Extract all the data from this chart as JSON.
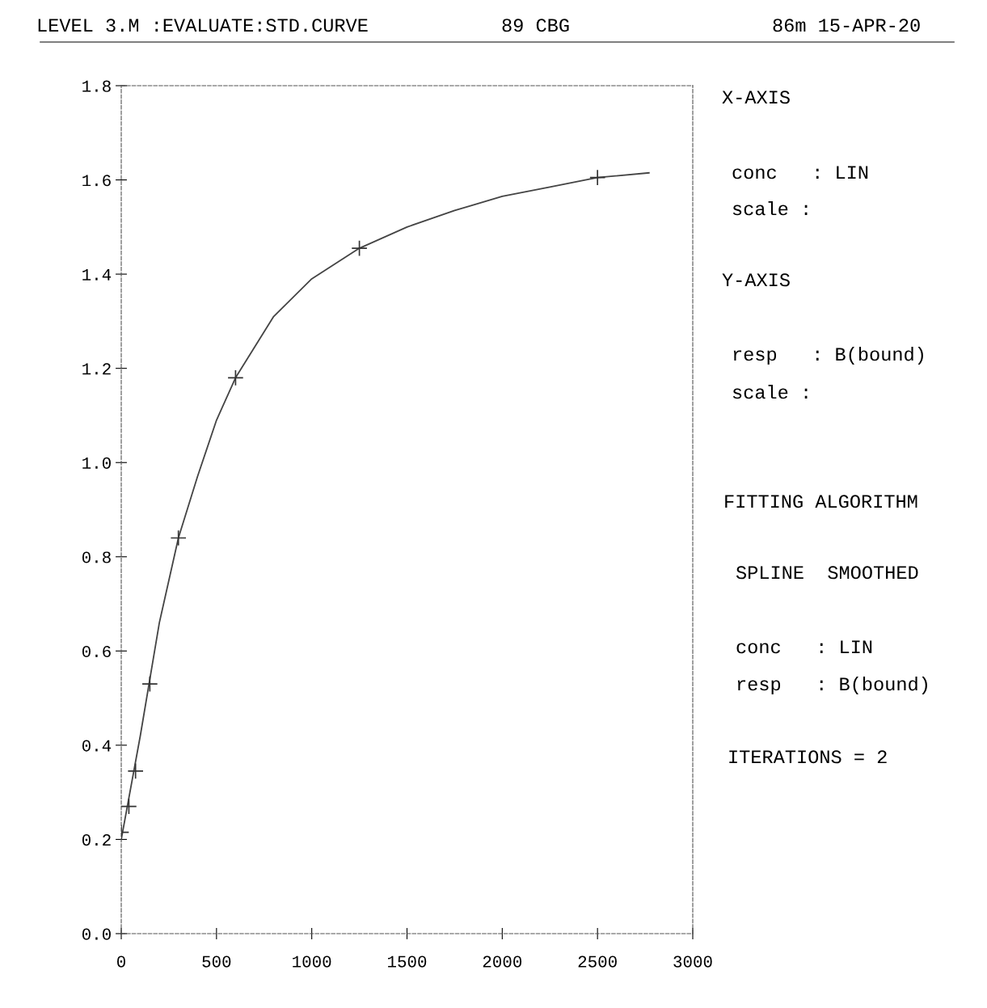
{
  "chart_data": {
    "type": "scatter",
    "title": "LEVEL 3.M :EVALUATE:STD.CURVE",
    "subtitle": "89 CBG",
    "annotations": [
      "86m 15-APR-20",
      "X-AXIS",
      "conc   : LIN",
      "scale :",
      "Y-AXIS",
      "resp   : B(bound)",
      "scale :",
      "FITTING ALGORITHM",
      "SPLINE  SMOOTHED",
      "conc   : LIN",
      "resp   : B(bound)",
      "ITERATIONS = 2"
    ],
    "x": [
      0,
      40,
      75,
      150,
      300,
      600,
      1250,
      2500
    ],
    "series": [
      {
        "values": [
          0.215,
          0.27,
          0.345,
          0.53,
          0.84,
          1.18,
          1.455,
          1.605
        ],
        "color": "#333333",
        "marker": "cross"
      },
      {
        "type": "line",
        "x": [
          0,
          100,
          200,
          300,
          400,
          500,
          600,
          800,
          1000,
          1250,
          1500,
          1750,
          2000,
          2250,
          2500,
          2770
        ],
        "values": [
          0.2,
          0.42,
          0.66,
          0.84,
          0.97,
          1.09,
          1.18,
          1.31,
          1.39,
          1.455,
          1.5,
          1.535,
          1.565,
          1.585,
          1.605,
          1.615
        ],
        "color": "#444444",
        "marker": "none",
        "line_style": "solid"
      }
    ],
    "xlim": [
      0,
      3000
    ],
    "xticks": [
      0,
      500,
      1000,
      1500,
      2000,
      2500,
      3000
    ],
    "ylim": [
      0,
      1.8
    ],
    "yticks": [
      {
        "value": 0,
        "label": "0.0"
      },
      {
        "value": 0.2,
        "label": "0.2"
      },
      {
        "value": 0.4,
        "label": "0.4"
      },
      {
        "value": 0.6,
        "label": "0.6"
      },
      {
        "value": 0.8,
        "label": "0.8"
      },
      {
        "value": 1.0,
        "label": "1.0"
      },
      {
        "value": 1.2,
        "label": "1.2"
      },
      {
        "value": 1.4,
        "label": "1.4"
      },
      {
        "value": 1.6,
        "label": "1.6"
      },
      {
        "value": 1.8,
        "label": "1.8"
      }
    ],
    "grid": false,
    "legend": false
  }
}
